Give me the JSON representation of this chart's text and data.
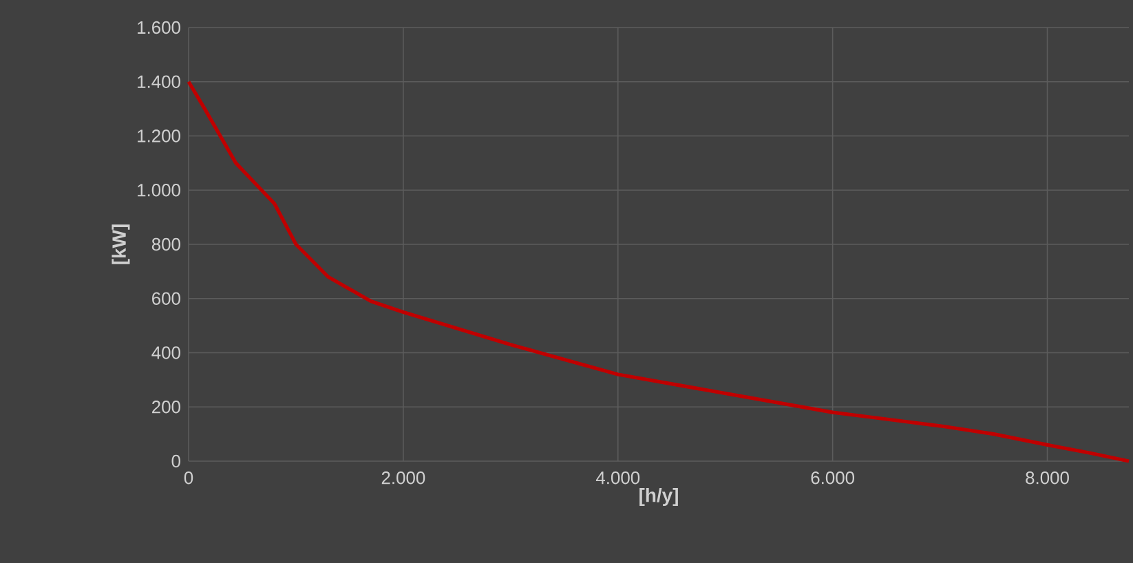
{
  "chart_data": {
    "type": "line",
    "xlabel": "[h/y]",
    "ylabel": "[kW]",
    "x": [
      0,
      150,
      440,
      800,
      1000,
      1300,
      1700,
      2000,
      2500,
      3000,
      3500,
      4000,
      4500,
      5000,
      5500,
      6000,
      6500,
      7000,
      7500,
      8000,
      8400,
      8760
    ],
    "series": [
      {
        "color": "#c00000",
        "values": [
          1400,
          1300,
          1100,
          950,
          800,
          680,
          590,
          550,
          490,
          430,
          375,
          320,
          285,
          250,
          215,
          180,
          155,
          130,
          100,
          60,
          30,
          0
        ]
      }
    ],
    "xlim": [
      0,
      8760
    ],
    "ylim": [
      0,
      1600
    ],
    "xticks": [
      0,
      {
        "value": 2000,
        "label": "2.000"
      },
      {
        "value": 4000,
        "label": "4.000"
      },
      {
        "value": 6000,
        "label": "6.000"
      },
      {
        "value": 8000,
        "label": "8.000"
      }
    ],
    "yticks": [
      0,
      200,
      400,
      600,
      800,
      {
        "value": 1000,
        "label": "1.000"
      },
      {
        "value": 1200,
        "label": "1.200"
      },
      {
        "value": 1400,
        "label": "1.400"
      },
      {
        "value": 1600,
        "label": "1.600"
      }
    ],
    "grid": true,
    "marker": "none",
    "line_style": "solid"
  }
}
